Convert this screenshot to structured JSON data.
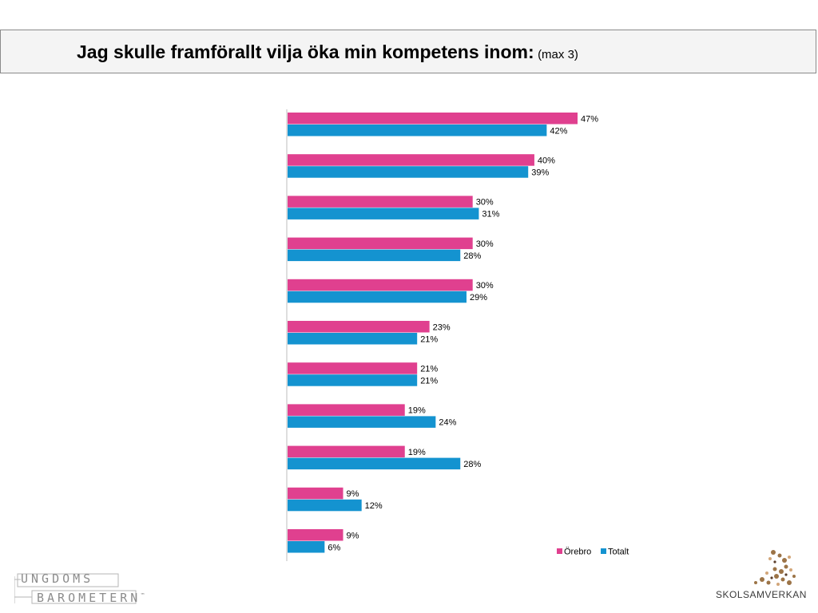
{
  "title": {
    "main": "Jag skulle framförallt vilja öka min kompetens inom:",
    "sub": "(max 3)"
  },
  "colors": {
    "orebro": "#e0408f",
    "totalt": "#1493d0",
    "axis": "#bdbdbd"
  },
  "chart_data": {
    "type": "bar",
    "orientation": "horizontal",
    "categories": [
      "",
      "",
      "",
      "",
      "",
      "",
      "",
      "",
      "",
      "",
      ""
    ],
    "series": [
      {
        "name": "Örebro",
        "values": [
          47,
          40,
          30,
          30,
          30,
          23,
          21,
          19,
          19,
          9,
          9
        ],
        "labels": [
          "47%",
          "40%",
          "30%",
          "30%",
          "30%",
          "23%",
          "21%",
          "19%",
          "19%",
          "9%",
          "9%"
        ]
      },
      {
        "name": "Totalt",
        "values": [
          42,
          39,
          31,
          28,
          29,
          21,
          21,
          24,
          28,
          12,
          6
        ],
        "labels": [
          "42%",
          "39%",
          "31%",
          "28%",
          "29%",
          "21%",
          "21%",
          "24%",
          "28%",
          "12%",
          "6%"
        ]
      }
    ],
    "unit": "%",
    "xlim": [
      0,
      47
    ],
    "grid": false,
    "legend": "bottom-right"
  },
  "logos": {
    "ungdomsbarometern": {
      "line1": "UNGDOMS",
      "line2": "BAROMETERN",
      "tm": "™"
    },
    "skolsamverkan": "SKOLSAMVERKAN"
  }
}
